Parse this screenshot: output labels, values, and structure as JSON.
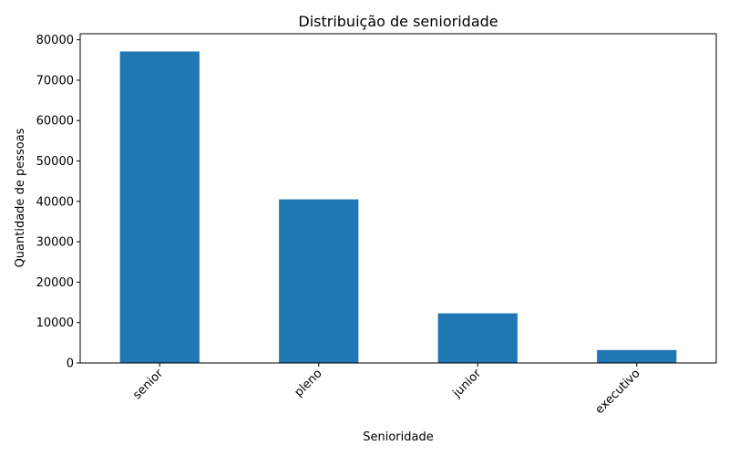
{
  "chart_data": {
    "type": "bar",
    "title": "Distribuição de senioridade",
    "xlabel": "Senioridade",
    "ylabel": "Quantidade de pessoas",
    "categories": [
      "senior",
      "pleno",
      "junior",
      "executivo"
    ],
    "values": [
      77100,
      40500,
      12300,
      3200
    ],
    "ylim": [
      0,
      81500
    ],
    "yticks": [
      0,
      10000,
      20000,
      30000,
      40000,
      50000,
      60000,
      70000,
      80000
    ],
    "ytick_labels": [
      "0",
      "10000",
      "20000",
      "30000",
      "40000",
      "50000",
      "60000",
      "70000",
      "80000"
    ],
    "grid": false,
    "legend": "none",
    "bar_color": "#1f77b4"
  }
}
